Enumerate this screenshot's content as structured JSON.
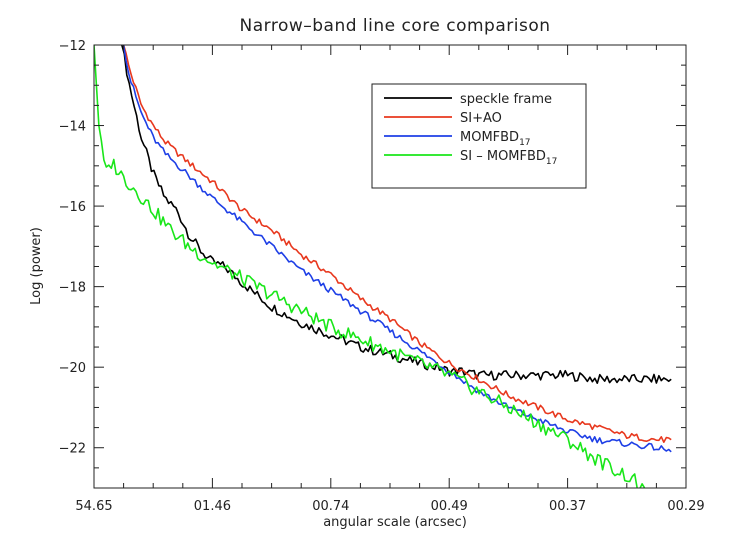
{
  "chart_data": {
    "type": "line",
    "title": "Narrow–band line core comparison",
    "xlabel": "angular scale (arcsec)",
    "ylabel": "Log (power)",
    "xlim": [
      0,
      1
    ],
    "ylim": [
      -23,
      -12
    ],
    "x_tick_labels": [
      {
        "label": "54.65",
        "pos": 0.0
      },
      {
        "label": "01.46",
        "pos": 0.2
      },
      {
        "label": "00.74",
        "pos": 0.4
      },
      {
        "label": "00.49",
        "pos": 0.6
      },
      {
        "label": "00.37",
        "pos": 0.8
      },
      {
        "label": "00.29",
        "pos": 1.0
      }
    ],
    "y_ticks": [
      -22,
      -20,
      -18,
      -16,
      -14,
      -12
    ],
    "legend": {
      "placement": "top-right",
      "entries": [
        {
          "text": "speckle frame",
          "sub": "",
          "color": "#000000"
        },
        {
          "text": "SI+AO",
          "sub": "",
          "color": "#e8381e"
        },
        {
          "text": "MOMFBD",
          "sub": "17",
          "color": "#1e3fe6"
        },
        {
          "text": "SI – MOMFBD",
          "sub": "17",
          "color": "#19e619"
        }
      ]
    },
    "series": [
      {
        "key": "speckle",
        "color": "#000000",
        "noise": 0.12,
        "x": [
          0.047,
          0.06,
          0.08,
          0.1,
          0.12,
          0.14,
          0.16,
          0.18,
          0.2,
          0.22,
          0.25,
          0.3,
          0.35,
          0.4,
          0.45,
          0.5,
          0.55,
          0.58,
          0.6,
          0.62,
          0.65,
          0.7,
          0.75,
          0.8,
          0.85,
          0.9,
          0.95,
          0.975
        ],
        "y": [
          -12.0,
          -13.0,
          -14.3,
          -15.2,
          -15.8,
          -16.1,
          -16.7,
          -17.1,
          -17.4,
          -17.5,
          -17.9,
          -18.5,
          -18.9,
          -19.2,
          -19.5,
          -19.7,
          -19.9,
          -20.0,
          -20.1,
          -20.1,
          -20.2,
          -20.2,
          -20.2,
          -20.2,
          -20.3,
          -20.3,
          -20.3,
          -20.3
        ]
      },
      {
        "key": "siao",
        "color": "#e8381e",
        "noise": 0.08,
        "x": [
          0.05,
          0.06,
          0.08,
          0.1,
          0.12,
          0.15,
          0.2,
          0.25,
          0.3,
          0.35,
          0.4,
          0.45,
          0.5,
          0.55,
          0.6,
          0.65,
          0.7,
          0.75,
          0.8,
          0.85,
          0.9,
          0.95,
          0.975
        ],
        "y": [
          -12.0,
          -12.6,
          -13.5,
          -14.0,
          -14.4,
          -14.8,
          -15.4,
          -16.1,
          -16.6,
          -17.2,
          -17.7,
          -18.3,
          -18.8,
          -19.4,
          -19.9,
          -20.3,
          -20.7,
          -21.0,
          -21.3,
          -21.5,
          -21.7,
          -21.8,
          -21.8
        ]
      },
      {
        "key": "momfbd",
        "color": "#1e3fe6",
        "noise": 0.08,
        "x": [
          0.05,
          0.06,
          0.08,
          0.1,
          0.12,
          0.15,
          0.2,
          0.25,
          0.3,
          0.35,
          0.4,
          0.45,
          0.5,
          0.55,
          0.6,
          0.65,
          0.7,
          0.75,
          0.8,
          0.85,
          0.9,
          0.95,
          0.975
        ],
        "y": [
          -12.0,
          -12.8,
          -13.7,
          -14.3,
          -14.7,
          -15.1,
          -15.8,
          -16.4,
          -17.0,
          -17.6,
          -18.1,
          -18.6,
          -19.1,
          -19.6,
          -20.1,
          -20.6,
          -21.0,
          -21.3,
          -21.6,
          -21.8,
          -21.9,
          -22.0,
          -22.1
        ]
      },
      {
        "key": "sim",
        "color": "#19e619",
        "noise": 0.18,
        "x": [
          0.0,
          0.005,
          0.01,
          0.02,
          0.03,
          0.05,
          0.07,
          0.1,
          0.13,
          0.16,
          0.2,
          0.25,
          0.3,
          0.35,
          0.4,
          0.45,
          0.5,
          0.55,
          0.6,
          0.65,
          0.7,
          0.75,
          0.8,
          0.85,
          0.9,
          0.93
        ],
        "y": [
          -12.0,
          -13.2,
          -14.3,
          -15.2,
          -14.9,
          -15.3,
          -15.6,
          -16.1,
          -16.6,
          -17.0,
          -17.4,
          -17.8,
          -18.2,
          -18.6,
          -19.0,
          -19.3,
          -19.6,
          -19.9,
          -20.2,
          -20.6,
          -21.0,
          -21.4,
          -21.8,
          -22.3,
          -22.7,
          -23.0
        ]
      }
    ]
  }
}
